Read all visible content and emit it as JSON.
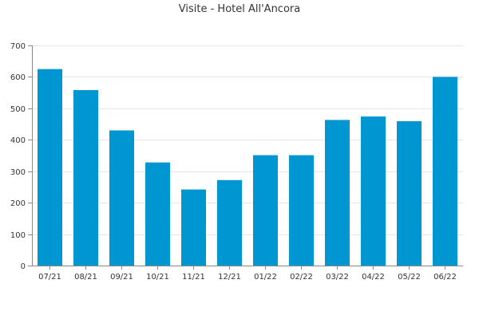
{
  "chart_data": {
    "type": "bar",
    "title": "Visite - Hotel All'Ancora",
    "xlabel": "",
    "ylabel": "",
    "categories": [
      "07/21",
      "08/21",
      "09/21",
      "10/21",
      "11/21",
      "12/21",
      "01/22",
      "02/22",
      "03/22",
      "04/22",
      "05/22",
      "06/22"
    ],
    "values": [
      625,
      558,
      430,
      328,
      242,
      272,
      351,
      351,
      463,
      474,
      459,
      600
    ],
    "ylim": [
      0,
      700
    ],
    "yticks": [
      0,
      100,
      200,
      300,
      400,
      500,
      600,
      700
    ],
    "grid": true,
    "legend": "none",
    "bar_color": "#0096d2"
  }
}
